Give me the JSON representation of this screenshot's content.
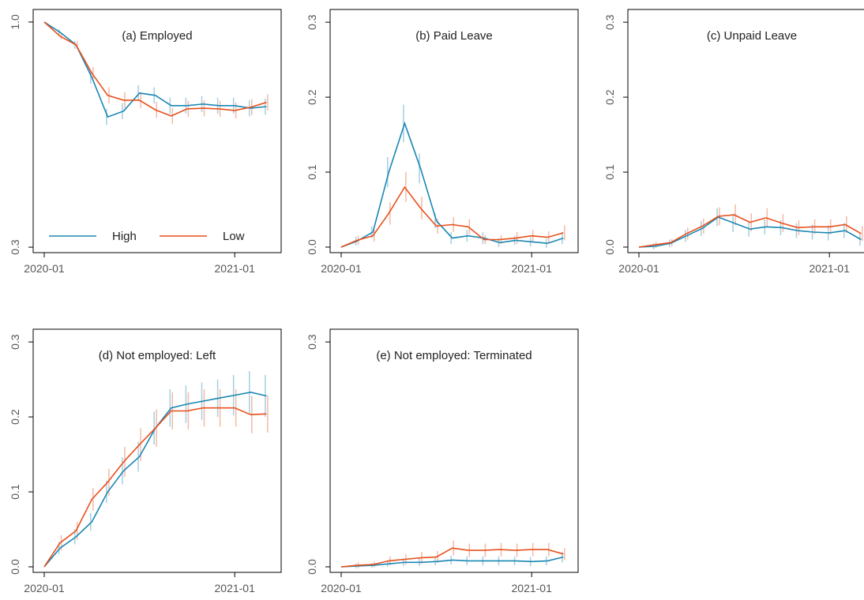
{
  "chart_data": [
    {
      "type": "line",
      "title": "(a) Employed",
      "x": [
        "2020-01",
        "2020-02",
        "2020-03",
        "2020-04",
        "2020-05",
        "2020-06",
        "2020-07",
        "2020-08",
        "2020-09",
        "2020-10",
        "2020-11",
        "2020-12",
        "2021-01",
        "2021-02",
        "2021-03"
      ],
      "xticks": [
        "2020-01",
        "2021-01"
      ],
      "ylim": [
        0.283,
        1.039
      ],
      "yticks": [
        0.3,
        {
          "value": 1,
          "label": "1.0"
        }
      ],
      "legend": "lower left",
      "series": [
        {
          "name": "High",
          "color": "#1b87b3",
          "values": [
            1.0,
            0.968,
            0.929,
            0.828,
            0.705,
            0.723,
            0.779,
            0.772,
            0.74,
            0.74,
            0.745,
            0.74,
            0.74,
            0.732,
            0.737
          ],
          "errors": [
            0,
            0.01,
            0.012,
            0.02,
            0.025,
            0.025,
            0.025,
            0.025,
            0.025,
            0.025,
            0.025,
            0.025,
            0.025,
            0.025,
            0.025
          ]
        },
        {
          "name": "Low",
          "color": "#e8501c",
          "values": [
            1.0,
            0.956,
            0.929,
            0.841,
            0.772,
            0.757,
            0.757,
            0.727,
            0.708,
            0.73,
            0.732,
            0.73,
            0.725,
            0.735,
            0.75
          ],
          "errors": [
            0,
            0.01,
            0.012,
            0.02,
            0.025,
            0.025,
            0.025,
            0.025,
            0.025,
            0.025,
            0.025,
            0.025,
            0.025,
            0.025,
            0.025
          ]
        }
      ]
    },
    {
      "type": "line",
      "title": "(b) Paid Leave",
      "x": [
        "2020-01",
        "2020-02",
        "2020-03",
        "2020-04",
        "2020-05",
        "2020-06",
        "2020-07",
        "2020-08",
        "2020-09",
        "2020-10",
        "2020-11",
        "2020-12",
        "2021-01",
        "2021-02",
        "2021-03"
      ],
      "xticks": [
        "2020-01",
        "2021-01"
      ],
      "ylim": [
        -0.0074,
        0.317
      ],
      "yticks": [
        {
          "value": 0,
          "label": "0.0"
        },
        0.1,
        0.2,
        0.3
      ],
      "series": [
        {
          "color": "#1b87b3",
          "values": [
            0,
            0.008,
            0.02,
            0.1,
            0.165,
            0.105,
            0.035,
            0.012,
            0.015,
            0.012,
            0.006,
            0.009,
            0.007,
            0.005,
            0.012
          ],
          "errors": [
            0,
            0.006,
            0.008,
            0.02,
            0.025,
            0.02,
            0.01,
            0.008,
            0.008,
            0.008,
            0.006,
            0.006,
            0.006,
            0.006,
            0.008
          ]
        },
        {
          "color": "#e8501c",
          "values": [
            0,
            0.009,
            0.015,
            0.045,
            0.08,
            0.052,
            0.028,
            0.03,
            0.027,
            0.01,
            0.01,
            0.012,
            0.015,
            0.013,
            0.019
          ],
          "errors": [
            0,
            0.006,
            0.008,
            0.015,
            0.02,
            0.015,
            0.01,
            0.01,
            0.01,
            0.006,
            0.006,
            0.008,
            0.008,
            0.008,
            0.01
          ]
        }
      ]
    },
    {
      "type": "line",
      "title": "(c) Unpaid Leave",
      "x": [
        "2020-01",
        "2020-02",
        "2020-03",
        "2020-04",
        "2020-05",
        "2020-06",
        "2020-07",
        "2020-08",
        "2020-09",
        "2020-10",
        "2020-11",
        "2020-12",
        "2021-01",
        "2021-02",
        "2021-03"
      ],
      "xticks": [
        "2020-01",
        "2021-01"
      ],
      "ylim": [
        -0.0074,
        0.317
      ],
      "yticks": [
        {
          "value": 0,
          "label": "0.0"
        },
        0.1,
        0.2,
        0.3
      ],
      "series": [
        {
          "color": "#1b87b3",
          "values": [
            0,
            0.001,
            0.005,
            0.015,
            0.025,
            0.04,
            0.032,
            0.024,
            0.027,
            0.026,
            0.022,
            0.02,
            0.019,
            0.022,
            0.01
          ],
          "errors": [
            0,
            0.004,
            0.005,
            0.008,
            0.01,
            0.012,
            0.012,
            0.01,
            0.01,
            0.01,
            0.01,
            0.01,
            0.01,
            0.01,
            0.008
          ]
        },
        {
          "color": "#e8501c",
          "values": [
            0,
            0.003,
            0.006,
            0.018,
            0.028,
            0.041,
            0.043,
            0.033,
            0.039,
            0.032,
            0.026,
            0.027,
            0.027,
            0.03,
            0.018
          ],
          "errors": [
            0,
            0.004,
            0.005,
            0.008,
            0.01,
            0.012,
            0.014,
            0.012,
            0.013,
            0.012,
            0.01,
            0.01,
            0.01,
            0.011,
            0.01
          ]
        }
      ]
    },
    {
      "type": "line",
      "title": "(d) Not employed: Left",
      "x": [
        "2020-01",
        "2020-02",
        "2020-03",
        "2020-04",
        "2020-05",
        "2020-06",
        "2020-07",
        "2020-08",
        "2020-09",
        "2020-10",
        "2020-11",
        "2020-12",
        "2021-01",
        "2021-02",
        "2021-03"
      ],
      "xticks": [
        "2020-01",
        "2021-01"
      ],
      "ylim": [
        -0.0074,
        0.317
      ],
      "yticks": [
        {
          "value": 0,
          "label": "0.0"
        },
        0.1,
        0.2,
        0.3
      ],
      "series": [
        {
          "color": "#1b87b3",
          "values": [
            0,
            0.025,
            0.04,
            0.06,
            0.1,
            0.128,
            0.147,
            0.185,
            0.212,
            0.217,
            0.221,
            0.225,
            0.229,
            0.233,
            0.228
          ],
          "errors": [
            0,
            0.008,
            0.01,
            0.012,
            0.015,
            0.018,
            0.02,
            0.022,
            0.025,
            0.025,
            0.025,
            0.025,
            0.027,
            0.028,
            0.028
          ]
        },
        {
          "color": "#e8501c",
          "values": [
            0,
            0.032,
            0.048,
            0.09,
            0.113,
            0.14,
            0.163,
            0.185,
            0.208,
            0.208,
            0.212,
            0.212,
            0.212,
            0.203,
            0.204
          ],
          "errors": [
            0,
            0.01,
            0.012,
            0.015,
            0.018,
            0.02,
            0.022,
            0.025,
            0.025,
            0.025,
            0.025,
            0.025,
            0.025,
            0.025,
            0.025
          ]
        }
      ]
    },
    {
      "type": "line",
      "title": "(e) Not employed: Terminated",
      "x": [
        "2020-01",
        "2020-02",
        "2020-03",
        "2020-04",
        "2020-05",
        "2020-06",
        "2020-07",
        "2020-08",
        "2020-09",
        "2020-10",
        "2020-11",
        "2020-12",
        "2021-01",
        "2021-02",
        "2021-03"
      ],
      "xticks": [
        "2020-01",
        "2021-01"
      ],
      "ylim": [
        -0.0074,
        0.317
      ],
      "yticks": [
        {
          "value": 0,
          "label": "0.0"
        },
        0.3
      ],
      "series": [
        {
          "color": "#1b87b3",
          "values": [
            0,
            0.001,
            0.002,
            0.004,
            0.006,
            0.006,
            0.007,
            0.009,
            0.008,
            0.008,
            0.008,
            0.008,
            0.007,
            0.008,
            0.013
          ],
          "errors": [
            0,
            0.003,
            0.003,
            0.004,
            0.005,
            0.005,
            0.005,
            0.006,
            0.006,
            0.006,
            0.006,
            0.006,
            0.006,
            0.006,
            0.007
          ]
        },
        {
          "color": "#e8501c",
          "values": [
            0,
            0.002,
            0.003,
            0.008,
            0.01,
            0.012,
            0.013,
            0.025,
            0.022,
            0.022,
            0.023,
            0.022,
            0.023,
            0.023,
            0.017
          ],
          "errors": [
            0,
            0.004,
            0.004,
            0.006,
            0.007,
            0.008,
            0.008,
            0.01,
            0.009,
            0.009,
            0.009,
            0.009,
            0.009,
            0.009,
            0.008
          ]
        }
      ]
    }
  ]
}
